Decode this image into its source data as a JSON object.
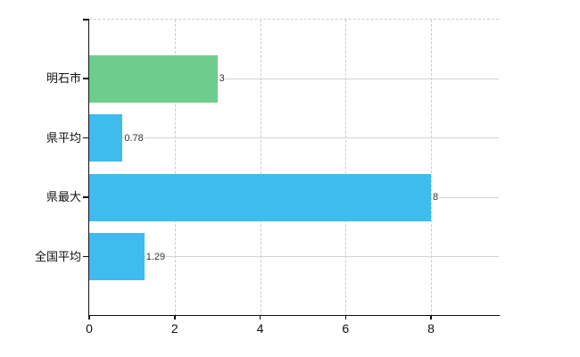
{
  "chart_data": {
    "type": "bar",
    "orientation": "horizontal",
    "title": "",
    "xlabel": "",
    "ylabel": "",
    "categories": [
      "明石市",
      "県平均",
      "県最大",
      "全国平均"
    ],
    "values": [
      3,
      0.78,
      8,
      1.29
    ],
    "value_labels": [
      "3",
      "0.78",
      "8",
      "1.29"
    ],
    "bar_colors": [
      "#6ecd8c",
      "#3fbcee",
      "#3fbcee",
      "#3fbcee"
    ],
    "xticks": [
      "0",
      "2",
      "4",
      "6",
      "8"
    ],
    "xtick_values": [
      0,
      2,
      4,
      6,
      8
    ],
    "xlim": [
      0,
      9.6
    ],
    "grid": "on",
    "legend": "none"
  },
  "colors": {
    "bar_green": "#6ecd8c",
    "bar_blue": "#3fbcee",
    "grid_solid": "#d0d4d0",
    "grid_dashed": "#cccccc",
    "axis": "#111111",
    "category_text": "#111111",
    "tick_text": "#111111",
    "value_text": "#333333",
    "background": "#ffffff"
  }
}
